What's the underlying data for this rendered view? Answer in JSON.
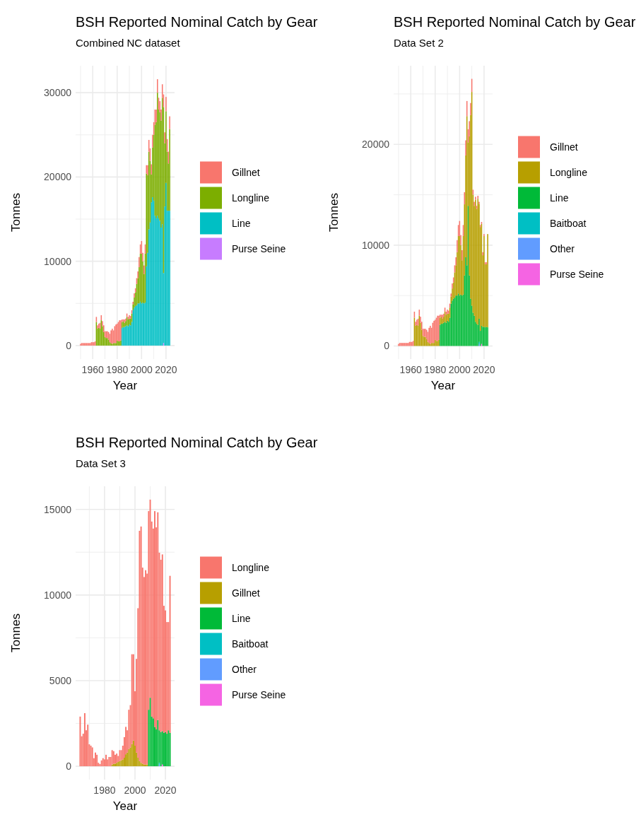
{
  "chart_data": [
    {
      "type": "bar",
      "stacked": true,
      "title": "BSH Reported Nominal Catch by Gear",
      "subtitle": "Combined NC dataset",
      "xlabel": "Year",
      "ylabel": "Tonnes",
      "grid": true,
      "legend": "right",
      "x": [
        1950,
        1951,
        1952,
        1953,
        1954,
        1955,
        1956,
        1957,
        1958,
        1959,
        1960,
        1961,
        1962,
        1963,
        1964,
        1965,
        1966,
        1967,
        1968,
        1969,
        1970,
        1971,
        1972,
        1973,
        1974,
        1975,
        1976,
        1977,
        1978,
        1979,
        1980,
        1981,
        1982,
        1983,
        1984,
        1985,
        1986,
        1987,
        1988,
        1989,
        1990,
        1991,
        1992,
        1993,
        1994,
        1995,
        1996,
        1997,
        1998,
        1999,
        2000,
        2001,
        2002,
        2003,
        2004,
        2005,
        2006,
        2007,
        2008,
        2009,
        2010,
        2011,
        2012,
        2013,
        2014,
        2015,
        2016,
        2017,
        2018,
        2019,
        2020,
        2021,
        2022,
        2023
      ],
      "xlim": [
        1946,
        2027
      ],
      "xticks": [
        {
          "value": 1950,
          "label": null
        },
        1960,
        {
          "value": 1970,
          "label": null
        },
        1980,
        {
          "value": 1990,
          "label": null
        },
        2000,
        {
          "value": 2010,
          "label": null
        },
        2020
      ],
      "ylim": [
        -1600,
        33200
      ],
      "yticks": [
        0,
        {
          "value": 5000,
          "label": null
        },
        10000,
        {
          "value": 15000,
          "label": null
        },
        20000,
        {
          "value": 25000,
          "label": null
        },
        30000
      ],
      "series": [
        {
          "name": "Purse Seine",
          "color": "#c77cff",
          "values": [
            null,
            null,
            null,
            null,
            null,
            null,
            null,
            null,
            null,
            null,
            null,
            null,
            null,
            null,
            null,
            null,
            null,
            null,
            null,
            null,
            null,
            null,
            null,
            null,
            null,
            null,
            null,
            null,
            null,
            null,
            null,
            null,
            null,
            null,
            null,
            null,
            null,
            null,
            null,
            null,
            null,
            null,
            null,
            null,
            null,
            null,
            null,
            null,
            null,
            null,
            null,
            null,
            null,
            null,
            null,
            null,
            null,
            null,
            null,
            null,
            null,
            null,
            null,
            null,
            null,
            null,
            null,
            null,
            300,
            null,
            null,
            null,
            null,
            null
          ]
        },
        {
          "name": "Line",
          "color": "#00bfc4",
          "values": [
            null,
            null,
            null,
            null,
            null,
            null,
            null,
            null,
            null,
            null,
            null,
            null,
            null,
            null,
            null,
            null,
            null,
            null,
            null,
            null,
            null,
            null,
            null,
            null,
            null,
            null,
            null,
            null,
            null,
            null,
            null,
            null,
            null,
            null,
            2100,
            2200,
            2200,
            2300,
            2400,
            2300,
            2500,
            2400,
            2800,
            4200,
            4500,
            4700,
            4800,
            5000,
            5000,
            5200,
            5000,
            5100,
            5000,
            5100,
            9400,
            11000,
            13800,
            14600,
            17000,
            17600,
            17200,
            15400,
            15100,
            15400,
            15100,
            14800,
            14000,
            14400,
            8300,
            16500,
            19300,
            16000,
            16000,
            16000
          ]
        },
        {
          "name": "Longline",
          "color": "#7cae00",
          "values": [
            null,
            null,
            null,
            null,
            null,
            null,
            null,
            null,
            null,
            null,
            null,
            null,
            null,
            2800,
            2000,
            2100,
            2000,
            3000,
            2300,
            1600,
            1000,
            900,
            900,
            700,
            400,
            300,
            200,
            300,
            300,
            300,
            600,
            500,
            500,
            600,
            700,
            700,
            500,
            600,
            1000,
            800,
            700,
            800,
            1000,
            700,
            1200,
            1600,
            2500,
            3000,
            4300,
            5700,
            5900,
            4900,
            3500,
            5800,
            11000,
            9200,
            9200,
            7300,
            3300,
            5900,
            7800,
            10800,
            11400,
            14600,
            12900,
            12900,
            12700,
            15000,
            19700,
            7500,
            8500,
            7000,
            5600,
            9700
          ]
        },
        {
          "name": "Gillnet",
          "color": "#f8766d",
          "values": [
            200,
            300,
            300,
            300,
            300,
            300,
            300,
            300,
            300,
            400,
            400,
            400,
            500,
            600,
            400,
            500,
            700,
            600,
            600,
            800,
            700,
            800,
            800,
            900,
            1000,
            1500,
            1800,
            1500,
            2000,
            2200,
            2000,
            2300,
            2500,
            2400,
            300,
            200,
            400,
            300,
            400,
            300,
            400,
            300,
            400,
            300,
            500,
            500,
            700,
            800,
            1200,
            1100,
            1500,
            1000,
            1000,
            1100,
            1000,
            1200,
            1400,
            1500,
            1200,
            1500,
            1500,
            1800,
            1500,
            1600,
            1400,
            1300,
            1300,
            1600,
            1500,
            1300,
            1700,
            1500,
            1400,
            1500
          ]
        }
      ]
    },
    {
      "type": "bar",
      "stacked": true,
      "title": "BSH Reported Nominal Catch by Gear",
      "subtitle": "Data Set 2",
      "xlabel": "Year",
      "ylabel": "Tonnes",
      "grid": true,
      "legend": "right",
      "x": [
        1950,
        1951,
        1952,
        1953,
        1954,
        1955,
        1956,
        1957,
        1958,
        1959,
        1960,
        1961,
        1962,
        1963,
        1964,
        1965,
        1966,
        1967,
        1968,
        1969,
        1970,
        1971,
        1972,
        1973,
        1974,
        1975,
        1976,
        1977,
        1978,
        1979,
        1980,
        1981,
        1982,
        1983,
        1984,
        1985,
        1986,
        1987,
        1988,
        1989,
        1990,
        1991,
        1992,
        1993,
        1994,
        1995,
        1996,
        1997,
        1998,
        1999,
        2000,
        2001,
        2002,
        2003,
        2004,
        2005,
        2006,
        2007,
        2008,
        2009,
        2010,
        2011,
        2012,
        2013,
        2014,
        2015,
        2016,
        2017,
        2018,
        2019,
        2020,
        2021,
        2022,
        2023
      ],
      "xlim": [
        1946,
        2027
      ],
      "xticks": [
        {
          "value": 1950,
          "label": null
        },
        1960,
        {
          "value": 1970,
          "label": null
        },
        1980,
        {
          "value": 1990,
          "label": null
        },
        2000,
        {
          "value": 2010,
          "label": null
        },
        2020
      ],
      "ylim": [
        -1300,
        27800
      ],
      "yticks": [
        0,
        {
          "value": 5000,
          "label": null
        },
        10000,
        {
          "value": 15000,
          "label": null
        },
        20000,
        {
          "value": 25000,
          "label": null
        }
      ],
      "series": [
        {
          "name": "Purse Seine",
          "color": "#f564e3",
          "values": [
            null,
            null,
            null,
            null,
            null,
            null,
            null,
            null,
            null,
            null,
            null,
            null,
            null,
            null,
            null,
            null,
            null,
            null,
            null,
            null,
            null,
            null,
            null,
            null,
            null,
            null,
            null,
            null,
            null,
            null,
            null,
            null,
            null,
            null,
            null,
            null,
            null,
            null,
            null,
            null,
            null,
            null,
            null,
            null,
            null,
            null,
            null,
            null,
            null,
            null,
            null,
            null,
            null,
            null,
            null,
            null,
            null,
            null,
            null,
            null,
            null,
            null,
            null,
            null,
            null,
            null,
            null,
            null,
            200,
            null,
            null,
            null,
            null,
            null
          ]
        },
        {
          "name": "Other",
          "color": "#619cff",
          "values": [
            null,
            null,
            null,
            null,
            null,
            null,
            null,
            null,
            null,
            null,
            null,
            null,
            null,
            null,
            null,
            null,
            null,
            null,
            null,
            null,
            null,
            null,
            null,
            null,
            null,
            null,
            null,
            null,
            null,
            null,
            null,
            null,
            null,
            null,
            null,
            null,
            null,
            null,
            null,
            null,
            null,
            null,
            null,
            null,
            null,
            null,
            null,
            null,
            null,
            null,
            null,
            null,
            null,
            null,
            null,
            null,
            null,
            null,
            null,
            null,
            null,
            null,
            null,
            null,
            null,
            null,
            200,
            null,
            null,
            null,
            null,
            null,
            null,
            null
          ]
        },
        {
          "name": "Baitboat",
          "color": "#00bfc4",
          "values": [
            null,
            null,
            null,
            null,
            null,
            null,
            null,
            null,
            null,
            null,
            null,
            null,
            null,
            null,
            null,
            null,
            null,
            null,
            null,
            null,
            null,
            null,
            null,
            null,
            null,
            null,
            null,
            null,
            null,
            null,
            null,
            null,
            null,
            null,
            null,
            null,
            null,
            null,
            null,
            null,
            null,
            null,
            null,
            null,
            null,
            null,
            null,
            null,
            null,
            null,
            null,
            null,
            null,
            null,
            null,
            null,
            null,
            null,
            null,
            null,
            null,
            null,
            null,
            null,
            null,
            null,
            200,
            null,
            null,
            null,
            null,
            null,
            null,
            null
          ]
        },
        {
          "name": "Line",
          "color": "#00ba38",
          "values": [
            null,
            null,
            null,
            null,
            null,
            null,
            null,
            null,
            null,
            null,
            null,
            null,
            null,
            null,
            null,
            null,
            null,
            null,
            null,
            null,
            null,
            null,
            null,
            null,
            null,
            null,
            null,
            null,
            null,
            null,
            null,
            null,
            null,
            null,
            2100,
            2200,
            2200,
            2300,
            2400,
            2300,
            2500,
            2400,
            2800,
            4200,
            4500,
            4700,
            4800,
            5000,
            5000,
            5200,
            5000,
            5100,
            5000,
            5100,
            7000,
            8800,
            8000,
            13900,
            7000,
            4700,
            4000,
            3300,
            3000,
            2400,
            2200,
            2100,
            2300,
            1500,
            1800,
            1900,
            1900,
            1850,
            1900,
            1850
          ]
        },
        {
          "name": "Longline",
          "color": "#b79f00",
          "values": [
            null,
            null,
            null,
            null,
            null,
            null,
            null,
            null,
            null,
            null,
            null,
            null,
            null,
            2800,
            2000,
            2100,
            2000,
            3000,
            2300,
            1600,
            1000,
            900,
            900,
            700,
            400,
            300,
            200,
            300,
            300,
            300,
            600,
            500,
            500,
            600,
            700,
            700,
            500,
            600,
            1000,
            800,
            700,
            800,
            1000,
            700,
            1200,
            1600,
            2500,
            3000,
            4300,
            5700,
            5900,
            4900,
            3500,
            5800,
            7050,
            10100,
            14800,
            6300,
            13800,
            18200,
            21200,
            11700,
            10900,
            12100,
            11400,
            12500,
            11400,
            10300,
            10100,
            7100,
            9000,
            6250,
            6200,
            9250
          ]
        },
        {
          "name": "Gillnet",
          "color": "#f8766d",
          "values": [
            200,
            300,
            300,
            300,
            300,
            300,
            300,
            300,
            300,
            400,
            400,
            400,
            500,
            600,
            400,
            500,
            700,
            600,
            600,
            800,
            700,
            800,
            800,
            900,
            1000,
            1500,
            1800,
            1500,
            2000,
            2200,
            2000,
            2300,
            2500,
            2400,
            300,
            200,
            400,
            300,
            400,
            300,
            400,
            300,
            400,
            300,
            500,
            500,
            700,
            800,
            1200,
            1100,
            1500,
            1000,
            1000,
            1100,
            1200,
            1500,
            1500,
            1300,
            1500,
            1200,
            1300,
            500,
            400,
            300,
            300,
            300,
            200,
            200,
            200,
            300,
            200,
            200,
            200,
            null
          ]
        }
      ]
    },
    {
      "type": "bar",
      "stacked": true,
      "title": "BSH Reported Nominal Catch by Gear",
      "subtitle": "Data Set 3",
      "xlabel": "Year",
      "ylabel": "Tonnes",
      "grid": true,
      "legend": "right",
      "x": [
        1964,
        1965,
        1966,
        1967,
        1968,
        1969,
        1970,
        1971,
        1972,
        1973,
        1974,
        1975,
        1976,
        1977,
        1978,
        1979,
        1980,
        1981,
        1982,
        1983,
        1984,
        1985,
        1986,
        1987,
        1988,
        1989,
        1990,
        1991,
        1992,
        1993,
        1994,
        1995,
        1996,
        1997,
        1998,
        1999,
        2000,
        2001,
        2002,
        2003,
        2004,
        2005,
        2006,
        2007,
        2008,
        2009,
        2010,
        2011,
        2012,
        2013,
        2014,
        2015,
        2016,
        2017,
        2018,
        2019,
        2020,
        2021,
        2022,
        2023
      ],
      "xlim": [
        1961,
        2026
      ],
      "xticks": [
        {
          "value": 1970,
          "label": null
        },
        1980,
        {
          "value": 1990,
          "label": null
        },
        2000,
        {
          "value": 2010,
          "label": null
        },
        2020
      ],
      "ylim": [
        -780,
        16350
      ],
      "yticks": [
        0,
        {
          "value": 2500,
          "label": null
        },
        5000,
        {
          "value": 7500,
          "label": null
        },
        10000,
        {
          "value": 12500,
          "label": null
        },
        15000
      ],
      "series": [
        {
          "name": "Purse Seine",
          "color": "#f564e3",
          "values": [
            null,
            null,
            null,
            null,
            null,
            null,
            null,
            null,
            null,
            null,
            null,
            null,
            null,
            null,
            null,
            null,
            null,
            null,
            null,
            null,
            null,
            null,
            null,
            null,
            null,
            null,
            null,
            null,
            null,
            null,
            null,
            null,
            null,
            null,
            null,
            null,
            null,
            null,
            null,
            null,
            null,
            null,
            null,
            null,
            null,
            null,
            null,
            null,
            null,
            null,
            null,
            null,
            null,
            null,
            100,
            null,
            null,
            null,
            null,
            null
          ]
        },
        {
          "name": "Other",
          "color": "#619cff",
          "values": [
            null,
            null,
            null,
            null,
            null,
            null,
            null,
            null,
            null,
            null,
            null,
            null,
            null,
            null,
            null,
            null,
            null,
            null,
            null,
            null,
            null,
            null,
            null,
            null,
            null,
            null,
            null,
            null,
            null,
            null,
            null,
            null,
            null,
            null,
            null,
            null,
            null,
            null,
            null,
            null,
            null,
            null,
            null,
            null,
            null,
            null,
            null,
            null,
            null,
            null,
            null,
            null,
            100,
            null,
            null,
            null,
            null,
            null,
            null,
            null
          ]
        },
        {
          "name": "Baitboat",
          "color": "#00bfc4",
          "values": [
            null,
            null,
            null,
            null,
            null,
            null,
            null,
            null,
            null,
            null,
            null,
            null,
            null,
            null,
            null,
            null,
            null,
            null,
            null,
            null,
            null,
            null,
            null,
            null,
            null,
            null,
            null,
            null,
            null,
            null,
            null,
            null,
            null,
            null,
            null,
            null,
            null,
            null,
            null,
            null,
            null,
            null,
            null,
            null,
            null,
            null,
            null,
            null,
            null,
            null,
            null,
            null,
            100,
            null,
            null,
            null,
            null,
            null,
            null,
            null
          ]
        },
        {
          "name": "Line",
          "color": "#00ba38",
          "values": [
            null,
            null,
            null,
            null,
            null,
            null,
            null,
            null,
            null,
            null,
            null,
            null,
            null,
            null,
            null,
            null,
            null,
            null,
            null,
            null,
            null,
            null,
            null,
            null,
            null,
            null,
            null,
            null,
            null,
            null,
            null,
            null,
            null,
            null,
            null,
            null,
            null,
            null,
            null,
            null,
            null,
            null,
            null,
            null,
            null,
            3300,
            4000,
            2900,
            2800,
            2300,
            2150,
            2700,
            1900,
            2000,
            1950,
            1950,
            2000,
            1900,
            2100,
            1950
          ]
        },
        {
          "name": "Gillnet",
          "color": "#b79f00",
          "values": [
            null,
            null,
            null,
            null,
            null,
            null,
            null,
            null,
            null,
            null,
            null,
            null,
            null,
            null,
            null,
            null,
            null,
            null,
            null,
            null,
            null,
            100,
            150,
            150,
            200,
            250,
            300,
            350,
            400,
            500,
            700,
            800,
            1000,
            1100,
            1300,
            1500,
            1200,
            800,
            500,
            300,
            200,
            150,
            100,
            100,
            100,
            null,
            null,
            null,
            null,
            null,
            null,
            null,
            null,
            null,
            null,
            null,
            null,
            null,
            null,
            null
          ]
        },
        {
          "name": "Longline",
          "color": "#f8766d",
          "values": [
            2900,
            1750,
            1900,
            3100,
            2100,
            2430,
            1280,
            1200,
            1100,
            470,
            800,
            670,
            200,
            130,
            340,
            470,
            400,
            670,
            400,
            540,
            540,
            840,
            730,
            520,
            540,
            350,
            640,
            590,
            800,
            1200,
            1600,
            1300,
            2300,
            2470,
            5240,
            5040,
            3180,
            5470,
            8730,
            13450,
            13800,
            11450,
            10950,
            11350,
            11150,
            11600,
            11570,
            11390,
            11080,
            12600,
            11800,
            12130,
            10370,
            10060,
            10320,
            7420,
            7100,
            6520,
            6320,
            9170
          ]
        }
      ]
    }
  ]
}
